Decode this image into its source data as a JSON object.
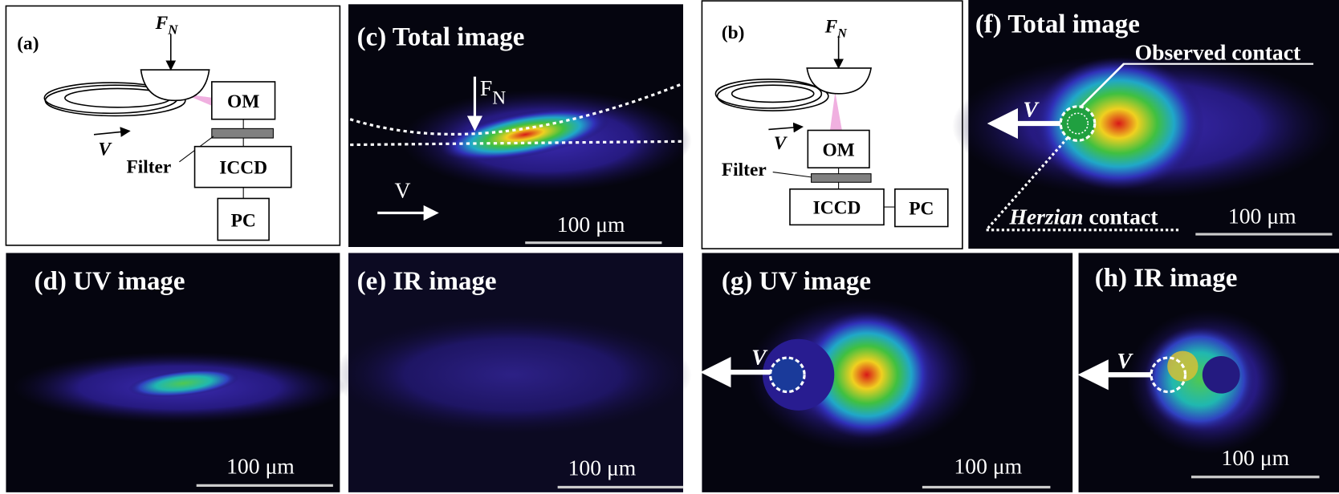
{
  "panels": {
    "a": {
      "label": "(a)",
      "force": "F",
      "force_sub": "N",
      "velocity": "V",
      "filter": "Filter",
      "boxes": [
        "OM",
        "ICCD",
        "PC"
      ]
    },
    "b": {
      "label": "(b)",
      "force": "F",
      "force_sub": "N",
      "velocity": "V",
      "filter": "Filter",
      "boxes": [
        "OM",
        "ICCD",
        "PC"
      ]
    },
    "c": {
      "label": "(c) Total image",
      "force": "F",
      "force_sub": "N",
      "velocity": "V",
      "scale_bar": "100 μm"
    },
    "d": {
      "label": "(d) UV image",
      "scale_bar": "100 μm"
    },
    "e": {
      "label": "(e) IR image",
      "scale_bar": "100 μm"
    },
    "f": {
      "label": "(f) Total image",
      "velocity": "V",
      "observed": "Observed contact",
      "hertzian_italic": "Herzian",
      "hertzian_rest": "contact",
      "scale_bar": "100 μm"
    },
    "g": {
      "label": "(g) UV image",
      "velocity": "V",
      "scale_bar": "100 μm"
    },
    "h": {
      "label": "(h) IR image",
      "velocity": "V",
      "scale_bar": "100 μm"
    }
  }
}
